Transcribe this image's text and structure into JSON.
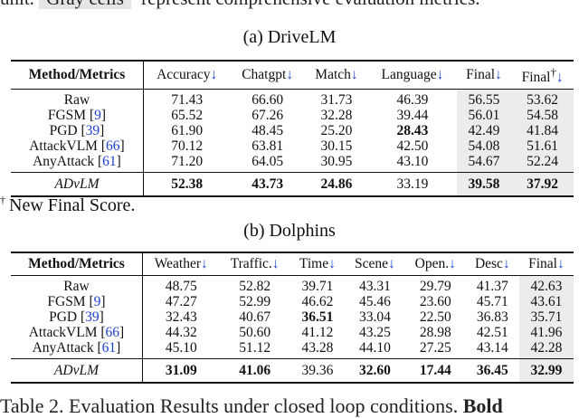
{
  "top_partial_text": {
    "prefix": "unit.",
    "grey_box": "Gray cells",
    "rest": "represent comprehensive evaluation metrics."
  },
  "arrow_glyph": "↓",
  "dagger_glyph": "†",
  "table_a": {
    "caption": "(a) DriveLM",
    "header": {
      "first": "Method/Metrics",
      "metrics": [
        "Accuracy",
        "Chatgpt",
        "Match",
        "Language",
        "Final",
        "Final"
      ]
    },
    "rows": [
      {
        "method": "Raw",
        "cite": "",
        "values": [
          "71.43",
          "66.60",
          "31.73",
          "46.39",
          "56.55",
          "53.62"
        ]
      },
      {
        "method": "FGSM",
        "cite": "9",
        "values": [
          "65.52",
          "67.26",
          "32.28",
          "39.44",
          "56.01",
          "54.58"
        ]
      },
      {
        "method": "PGD",
        "cite": "39",
        "values": [
          "61.90",
          "48.45",
          "25.20",
          "28.43",
          "42.49",
          "41.84"
        ]
      },
      {
        "method": "AttackVLM",
        "cite": "66",
        "values": [
          "70.12",
          "63.81",
          "30.15",
          "42.50",
          "54.08",
          "51.61"
        ]
      },
      {
        "method": "AnyAttack",
        "cite": "61",
        "values": [
          "71.20",
          "64.05",
          "30.95",
          "43.10",
          "54.67",
          "52.24"
        ]
      }
    ],
    "ours": {
      "method": "ADvLM",
      "values": [
        "52.38",
        "43.73",
        "24.86",
        "33.19",
        "39.58",
        "37.92"
      ]
    }
  },
  "footnote": {
    "text": "New Final Score."
  },
  "table_b": {
    "caption": "(b) Dolphins",
    "header": {
      "first": "Method/Metrics",
      "metrics": [
        "Weather",
        "Traffic.",
        "Time",
        "Scene",
        "Open.",
        "Desc",
        "Final"
      ]
    },
    "rows": [
      {
        "method": "Raw",
        "cite": "",
        "values": [
          "48.75",
          "52.82",
          "39.71",
          "43.31",
          "29.79",
          "41.37",
          "42.63"
        ]
      },
      {
        "method": "FGSM",
        "cite": "9",
        "values": [
          "47.27",
          "52.99",
          "46.62",
          "45.46",
          "23.60",
          "45.71",
          "43.61"
        ]
      },
      {
        "method": "PGD",
        "cite": "39",
        "values": [
          "32.43",
          "40.67",
          "36.51",
          "33.04",
          "22.50",
          "36.83",
          "35.71"
        ]
      },
      {
        "method": "AttackVLM",
        "cite": "66",
        "values": [
          "44.32",
          "50.60",
          "41.12",
          "43.25",
          "28.98",
          "42.51",
          "41.96"
        ]
      },
      {
        "method": "AnyAttack",
        "cite": "61",
        "values": [
          "45.10",
          "51.12",
          "43.28",
          "44.10",
          "27.25",
          "43.14",
          "42.28"
        ]
      }
    ],
    "ours": {
      "method": "ADvLM",
      "values": [
        "31.09",
        "41.06",
        "39.36",
        "32.60",
        "17.44",
        "36.45",
        "32.99"
      ]
    }
  },
  "bottom_caption": {
    "label": "Table 2.",
    "text": "Evaluation Results under closed loop conditions.",
    "bold_tail": "Bold"
  }
}
